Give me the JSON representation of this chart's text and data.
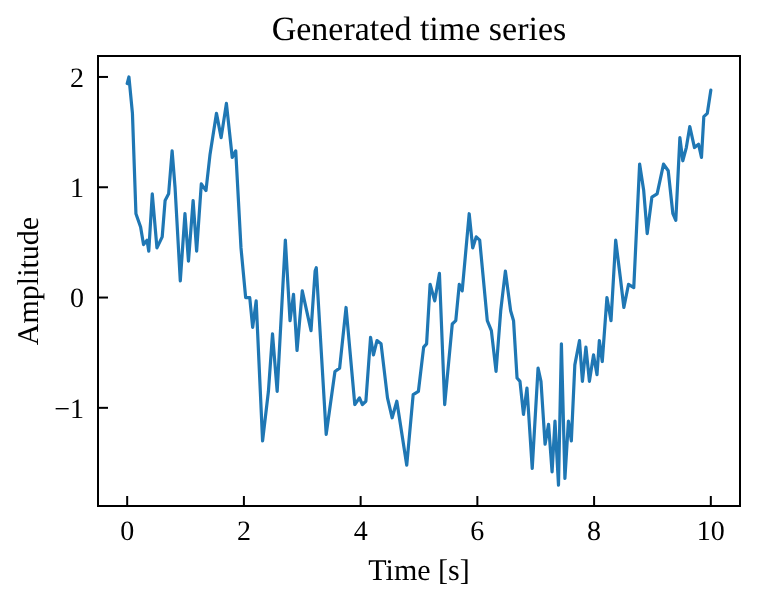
{
  "chart_data": {
    "type": "line",
    "title": "Generated time series",
    "xlabel": "Time [s]",
    "ylabel": "Amplitude",
    "xlim": [
      -0.5,
      10.5
    ],
    "ylim": [
      -1.89,
      2.19
    ],
    "xticks": [
      0,
      2,
      4,
      6,
      8,
      10
    ],
    "yticks": [
      -1,
      0,
      1,
      2
    ],
    "grid": false,
    "series": [
      {
        "color": "#1f77b4",
        "x": [
          0,
          0.03,
          0.09,
          0.15,
          0.23,
          0.28,
          0.34,
          0.37,
          0.43,
          0.51,
          0.6,
          0.65,
          0.71,
          0.77,
          0.82,
          0.91,
          0.99,
          1.05,
          1.13,
          1.19,
          1.27,
          1.35,
          1.42,
          1.53,
          1.61,
          1.7,
          1.8,
          1.86,
          1.95,
          2.03,
          2.1,
          2.15,
          2.21,
          2.32,
          2.42,
          2.49,
          2.57,
          2.71,
          2.79,
          2.85,
          2.91,
          3.0,
          3.15,
          3.22,
          3.24,
          3.41,
          3.56,
          3.64,
          3.75,
          3.9,
          3.98,
          4.03,
          4.09,
          4.17,
          4.22,
          4.28,
          4.35,
          4.46,
          4.54,
          4.62,
          4.79,
          4.9,
          4.99,
          5.08,
          5.13,
          5.19,
          5.27,
          5.35,
          5.44,
          5.57,
          5.63,
          5.69,
          5.74,
          5.86,
          5.92,
          5.98,
          6.04,
          6.17,
          6.24,
          6.32,
          6.4,
          6.48,
          6.57,
          6.62,
          6.68,
          6.73,
          6.79,
          6.85,
          6.94,
          7.04,
          7.09,
          7.16,
          7.22,
          7.28,
          7.33,
          7.39,
          7.44,
          7.5,
          7.56,
          7.61,
          7.67,
          7.75,
          7.8,
          7.86,
          7.92,
          7.99,
          8.05,
          8.09,
          8.14,
          8.22,
          8.29,
          8.37,
          8.45,
          8.51,
          8.59,
          8.68,
          8.78,
          8.85,
          8.91,
          8.99,
          9.08,
          9.19,
          9.27,
          9.35,
          9.4,
          9.47,
          9.52,
          9.58,
          9.64,
          9.72,
          9.79,
          9.84,
          9.88,
          9.94,
          10.0
        ],
        "values": [
          1.94,
          2.0,
          1.67,
          0.76,
          0.64,
          0.48,
          0.52,
          0.42,
          0.94,
          0.45,
          0.55,
          0.88,
          0.94,
          1.33,
          1.0,
          0.15,
          0.76,
          0.33,
          0.88,
          0.42,
          1.03,
          0.97,
          1.3,
          1.67,
          1.45,
          1.76,
          1.27,
          1.33,
          0.45,
          0.0,
          0.0,
          -0.27,
          -0.03,
          -1.3,
          -0.85,
          -0.33,
          -0.85,
          0.52,
          -0.21,
          0.03,
          -0.48,
          0.06,
          -0.3,
          0.24,
          0.27,
          -1.24,
          -0.67,
          -0.64,
          -0.09,
          -0.97,
          -0.91,
          -0.97,
          -0.94,
          -0.36,
          -0.52,
          -0.39,
          -0.42,
          -0.91,
          -1.09,
          -0.94,
          -1.52,
          -0.88,
          -0.85,
          -0.45,
          -0.42,
          0.12,
          -0.03,
          0.22,
          -0.97,
          -0.24,
          -0.21,
          0.12,
          0.06,
          0.76,
          0.45,
          0.55,
          0.52,
          -0.21,
          -0.3,
          -0.67,
          -0.12,
          0.24,
          -0.12,
          -0.21,
          -0.73,
          -0.76,
          -1.06,
          -0.82,
          -1.55,
          -0.64,
          -0.76,
          -1.33,
          -1.15,
          -1.58,
          -1.12,
          -1.7,
          -0.42,
          -1.64,
          -1.12,
          -1.3,
          -0.61,
          -0.39,
          -0.76,
          -0.45,
          -0.76,
          -0.52,
          -0.7,
          -0.39,
          -0.58,
          0.0,
          -0.21,
          0.52,
          0.18,
          -0.09,
          0.12,
          0.09,
          1.21,
          0.97,
          0.58,
          0.91,
          0.94,
          1.21,
          1.15,
          0.76,
          0.7,
          1.45,
          1.24,
          1.36,
          1.55,
          1.36,
          1.39,
          1.27,
          1.64,
          1.67,
          1.88
        ]
      }
    ]
  }
}
